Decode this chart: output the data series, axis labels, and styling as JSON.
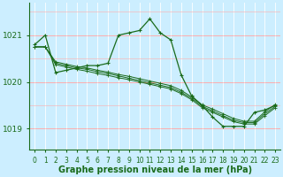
{
  "xlabel": "Graphe pression niveau de la mer (hPa)",
  "background_color": "#cceeff",
  "grid_color_h": "#ffaaaa",
  "grid_color_v": "#ffffff",
  "line_color": "#1a6b1a",
  "xlim": [
    -0.5,
    23.5
  ],
  "ylim": [
    1018.55,
    1021.7
  ],
  "yticks": [
    1019,
    1020,
    1021
  ],
  "xticks": [
    0,
    1,
    2,
    3,
    4,
    5,
    6,
    7,
    8,
    9,
    10,
    11,
    12,
    13,
    14,
    15,
    16,
    17,
    18,
    19,
    20,
    21,
    22,
    23
  ],
  "series": [
    [
      1020.8,
      1021.0,
      1020.2,
      1020.25,
      1020.3,
      1020.35,
      1020.35,
      1020.4,
      1021.0,
      1021.05,
      1021.1,
      1021.35,
      1021.05,
      1020.9,
      1020.15,
      1019.7,
      1019.5,
      1019.25,
      1019.05,
      1019.05,
      1019.05,
      1019.35,
      1019.4,
      1019.5
    ],
    [
      1020.75,
      1020.75,
      1020.4,
      1020.35,
      1020.3,
      1020.27,
      1020.22,
      1020.18,
      1020.13,
      1020.08,
      1020.03,
      1019.98,
      1019.93,
      1019.88,
      1019.78,
      1019.65,
      1019.48,
      1019.38,
      1019.28,
      1019.18,
      1019.13,
      1019.13,
      1019.32,
      1019.48
    ],
    [
      1020.75,
      1020.75,
      1020.37,
      1020.32,
      1020.27,
      1020.23,
      1020.18,
      1020.14,
      1020.09,
      1020.05,
      1020.0,
      1019.95,
      1019.9,
      1019.85,
      1019.75,
      1019.62,
      1019.45,
      1019.35,
      1019.25,
      1019.15,
      1019.1,
      1019.1,
      1019.28,
      1019.45
    ],
    [
      1020.75,
      1020.75,
      1020.43,
      1020.38,
      1020.33,
      1020.3,
      1020.25,
      1020.21,
      1020.16,
      1020.12,
      1020.07,
      1020.02,
      1019.97,
      1019.92,
      1019.82,
      1019.68,
      1019.51,
      1019.42,
      1019.32,
      1019.22,
      1019.16,
      1019.16,
      1019.36,
      1019.52
    ]
  ],
  "label_fontsize": 7,
  "tick_fontsize": 6.5
}
